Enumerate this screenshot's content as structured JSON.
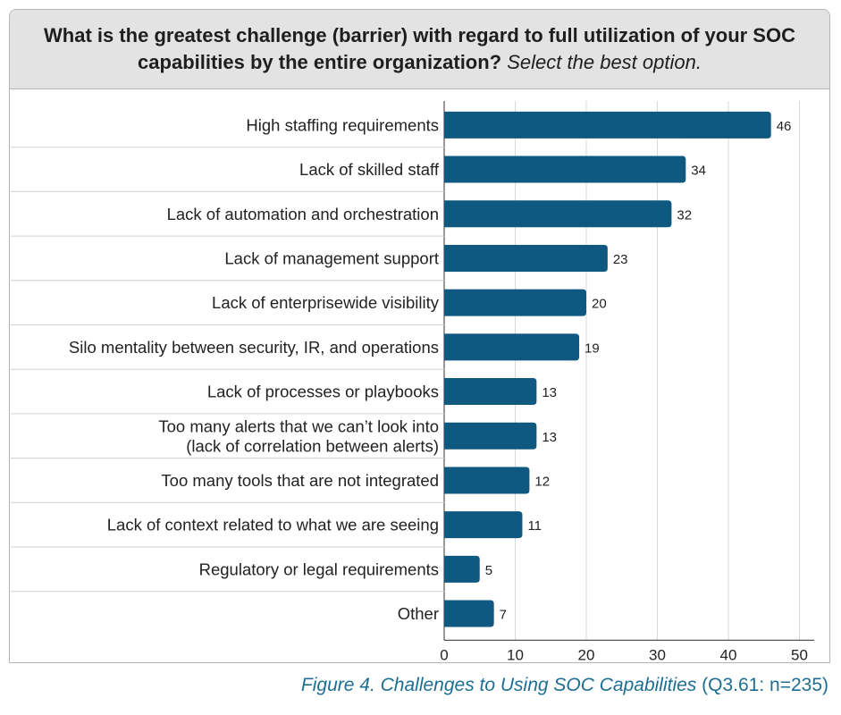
{
  "header": {
    "question": "What is the greatest challenge (barrier) with regard to full utilization of your SOC capabilities by the entire organization?",
    "instruction": "Select the best option."
  },
  "caption": {
    "figure": "Figure 4. Challenges to Using SOC Capabilities",
    "note": "(Q3.61: n=235)"
  },
  "colors": {
    "bar": "#0f5880",
    "header_bg": "#e3e3e3",
    "caption": "#1c6f93",
    "grid": "#d8d8d8",
    "row_separator": "#d0d0d0"
  },
  "chart_data": {
    "type": "bar",
    "orientation": "horizontal",
    "categories": [
      [
        "High staffing requirements"
      ],
      [
        "Lack of skilled staff"
      ],
      [
        "Lack of automation and orchestration"
      ],
      [
        "Lack of management support"
      ],
      [
        "Lack of enterprisewide visibility"
      ],
      [
        "Silo mentality between security, IR, and operations"
      ],
      [
        "Lack of processes or playbooks"
      ],
      [
        "Too many alerts that we can’t look into",
        "(lack of correlation between alerts)"
      ],
      [
        "Too many tools that are not integrated"
      ],
      [
        "Lack of context related to what we are seeing"
      ],
      [
        "Regulatory or legal requirements"
      ],
      [
        "Other"
      ]
    ],
    "values": [
      46,
      34,
      32,
      23,
      20,
      19,
      13,
      13,
      12,
      11,
      5,
      7
    ],
    "xlim": [
      0,
      52
    ],
    "xticks": [
      0,
      10,
      20,
      30,
      40,
      50
    ],
    "grid": true,
    "data_labels": true
  }
}
